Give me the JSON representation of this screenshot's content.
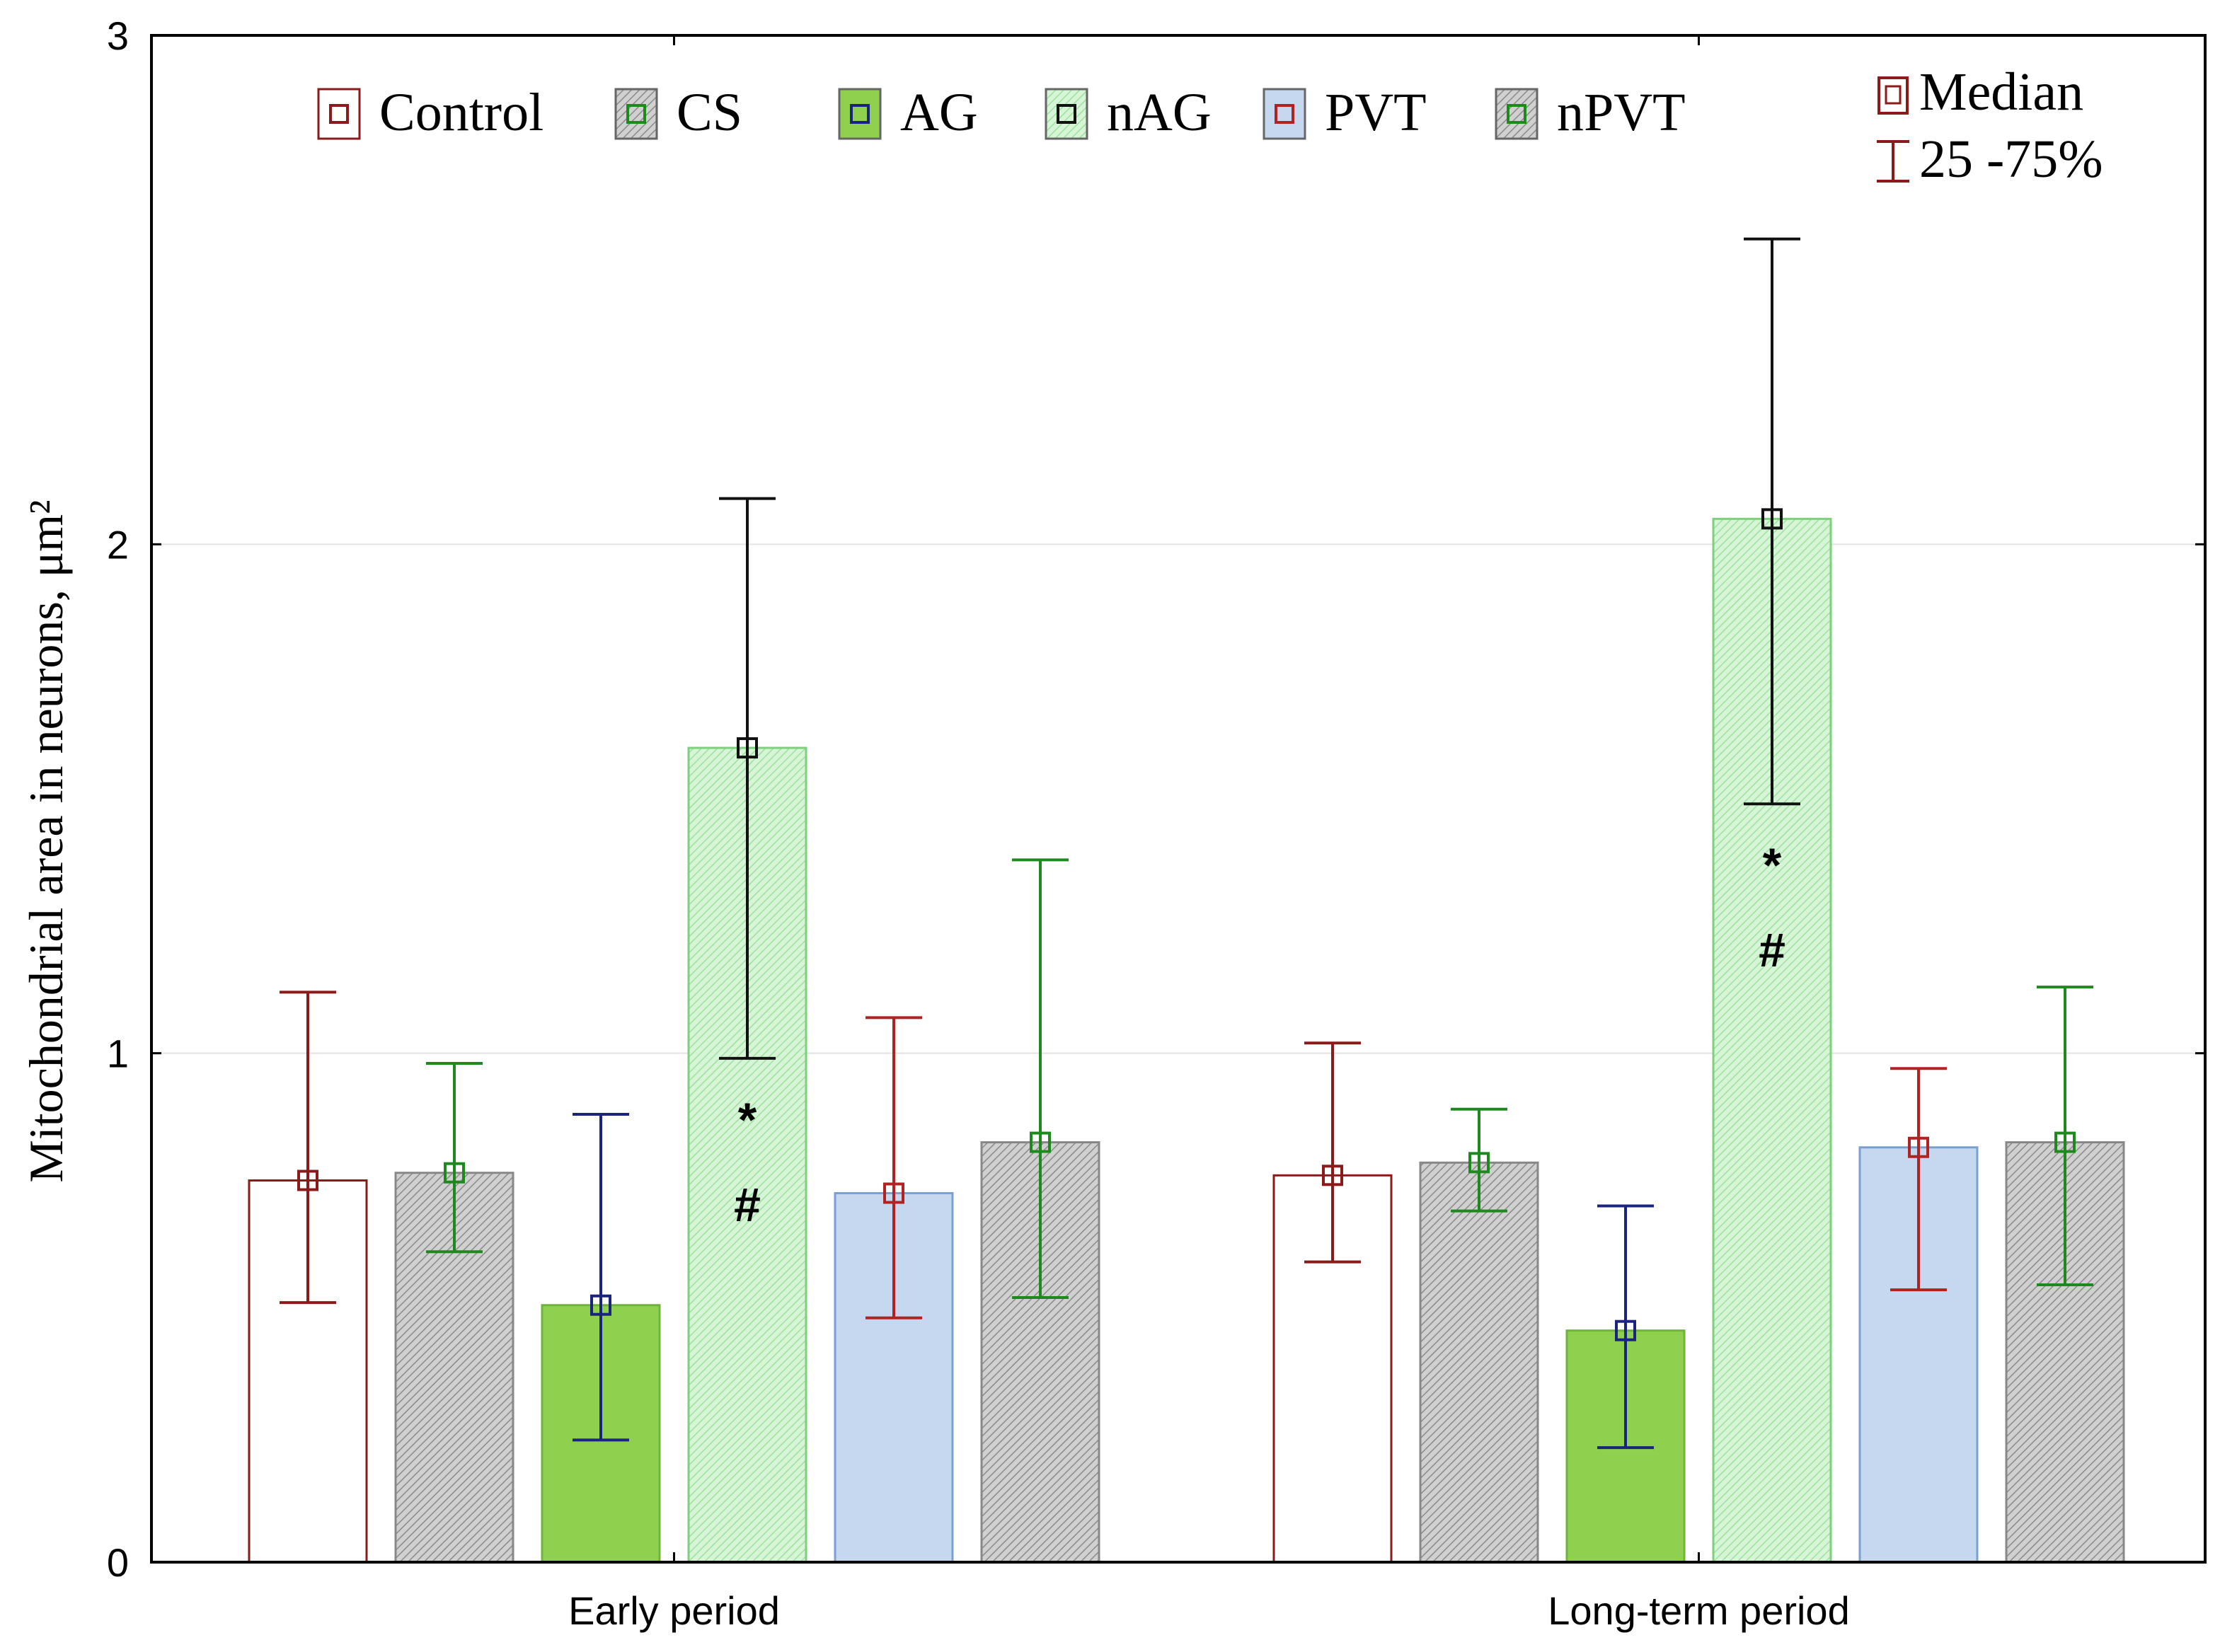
{
  "chart_data": {
    "type": "bar",
    "title": "",
    "xlabel": "",
    "ylabel": "Mitochondrial area  in neurons, μm²",
    "ylim": [
      0,
      3
    ],
    "yticks": [
      "0",
      "1",
      "2",
      "3"
    ],
    "grid": true,
    "legend_position": "top",
    "categories": [
      "Early period",
      "Long-term period"
    ],
    "series": [
      {
        "name": "Control",
        "fill": "#ffffff",
        "pattern": "none",
        "marker_color": "#8b1a1a",
        "median": [
          0.75,
          0.76
        ],
        "q25": [
          0.51,
          0.59
        ],
        "q75": [
          1.12,
          1.02
        ]
      },
      {
        "name": "CS",
        "fill": "#c8c8c8",
        "pattern": "hatch-gray",
        "marker_color": "#1e8a1e",
        "median": [
          0.765,
          0.785
        ],
        "q25": [
          0.61,
          0.69
        ],
        "q75": [
          0.98,
          0.89
        ]
      },
      {
        "name": "AG",
        "fill": "#8fd14f",
        "pattern": "none",
        "marker_color": "#1a237e",
        "median": [
          0.505,
          0.455
        ],
        "q25": [
          0.24,
          0.225
        ],
        "q75": [
          0.88,
          0.7
        ]
      },
      {
        "name": "nAG",
        "fill": "#c5f0c5",
        "pattern": "hatch-green",
        "marker_color": "#111111",
        "median": [
          1.6,
          2.05
        ],
        "q25": [
          0.99,
          1.49
        ],
        "q75": [
          2.09,
          2.6
        ]
      },
      {
        "name": "PVT",
        "fill": "#c6d8ef",
        "pattern": "none",
        "marker_color": "#b22222",
        "median": [
          0.725,
          0.815
        ],
        "q25": [
          0.48,
          0.535
        ],
        "q75": [
          1.07,
          0.97
        ]
      },
      {
        "name": "nPVT",
        "fill": "#c8c8c8",
        "pattern": "hatch-gray",
        "marker_color": "#1e8a1e",
        "median": [
          0.825,
          0.825
        ],
        "q25": [
          0.52,
          0.545
        ],
        "q75": [
          1.38,
          1.13
        ]
      }
    ],
    "annotations": [
      {
        "category": "Early period",
        "series": "nAG",
        "symbols": [
          "*",
          "#"
        ]
      },
      {
        "category": "Long-term period",
        "series": "nAG",
        "symbols": [
          "*",
          "#"
        ]
      }
    ],
    "legend_extra": {
      "median": "Median",
      "range": "25 -75%"
    }
  }
}
